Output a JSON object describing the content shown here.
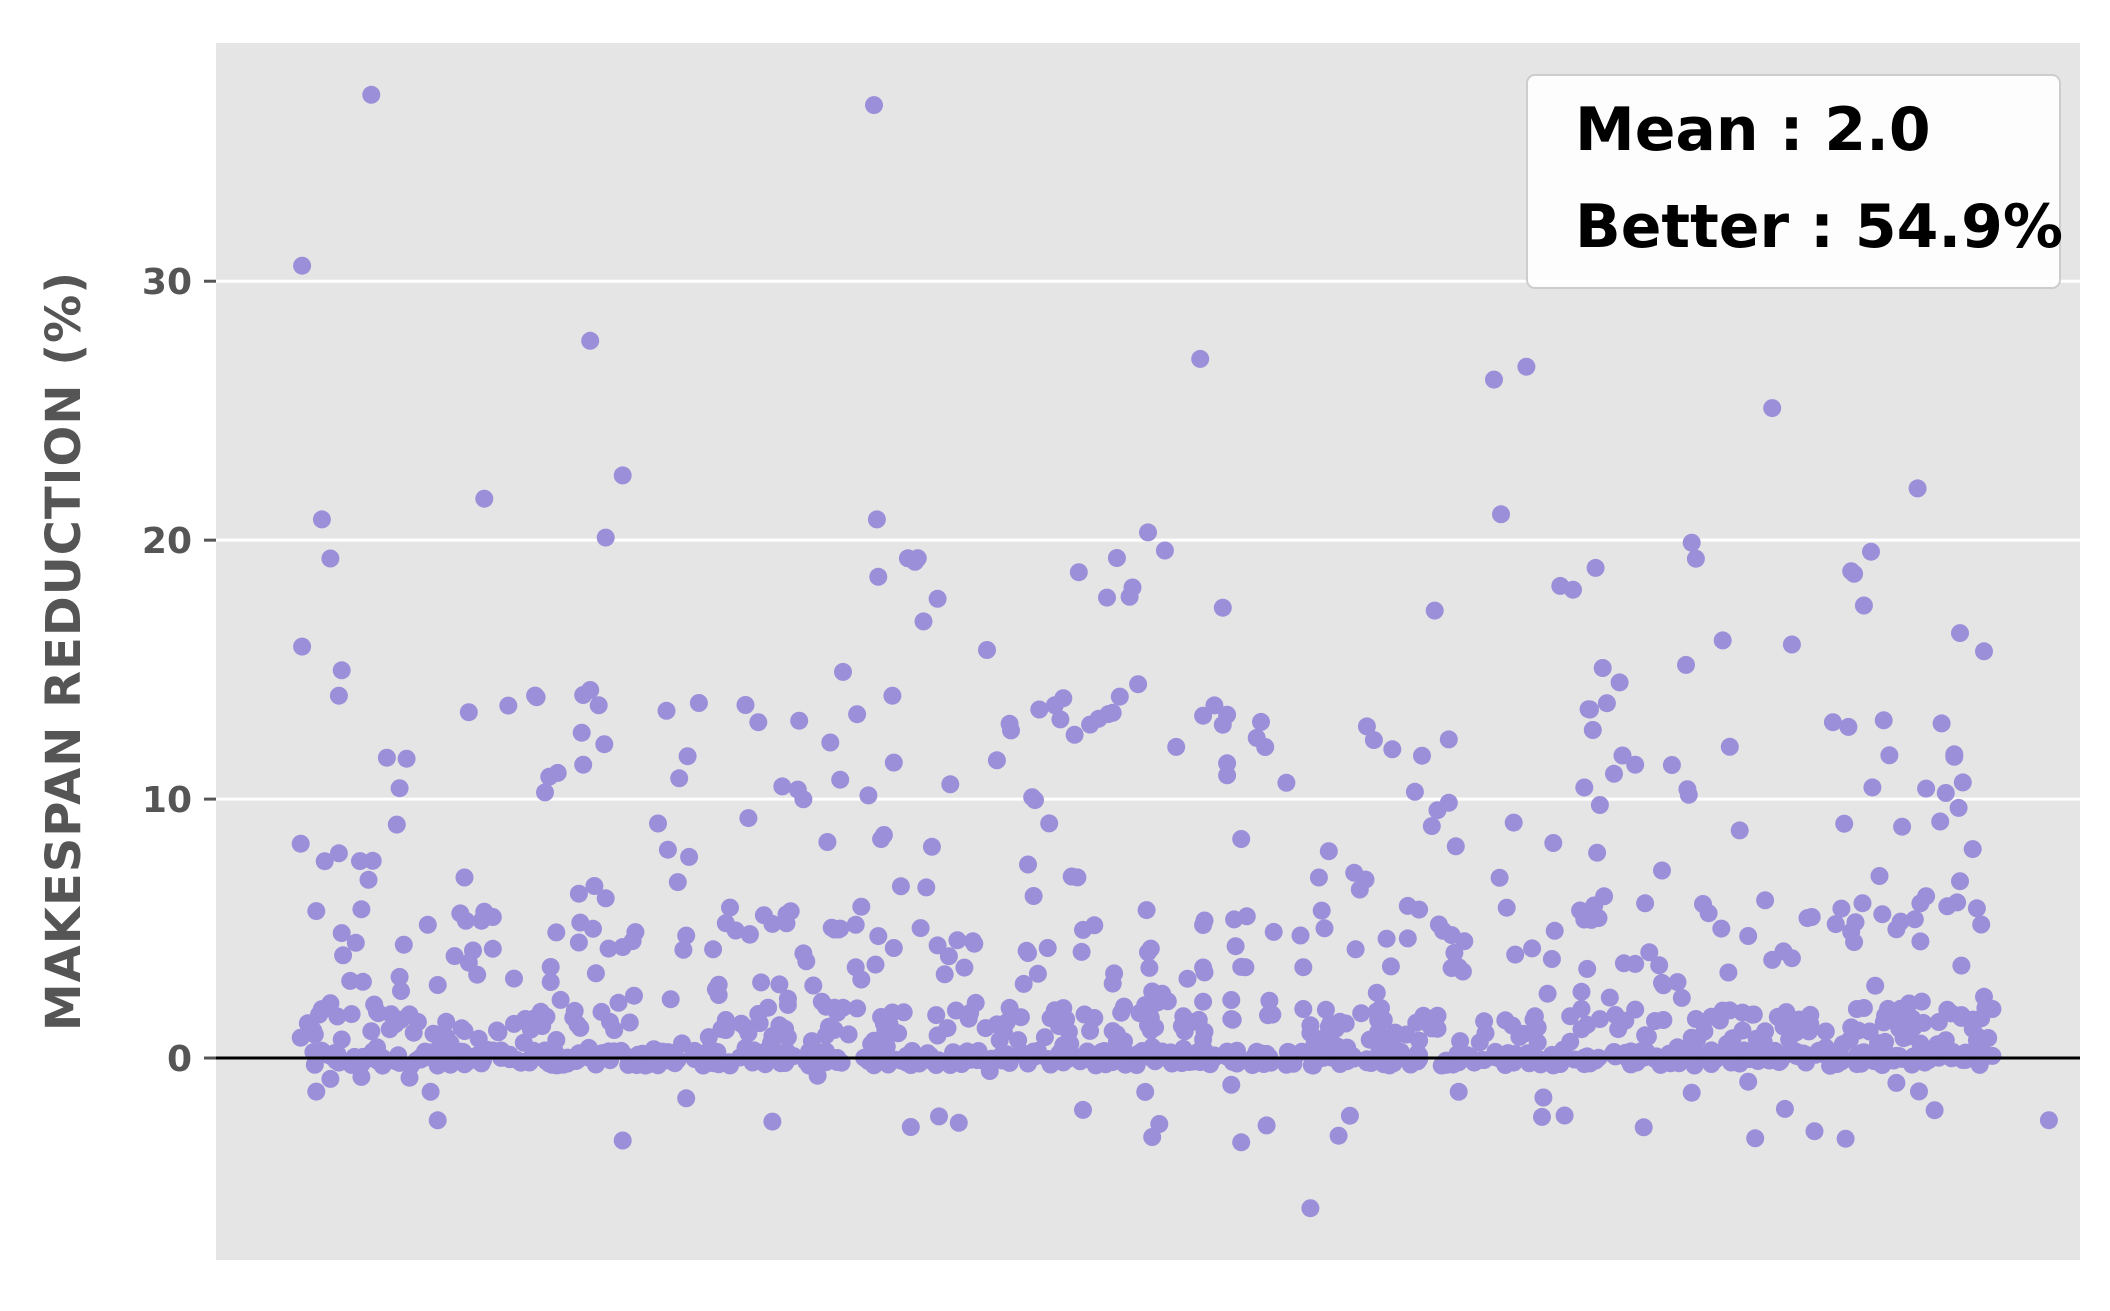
{
  "chart_data": {
    "type": "scatter",
    "title": "",
    "xlabel": "",
    "ylabel": "MAKESPAN REDUCTION (%)",
    "ylim": [
      -7.8,
      39.2
    ],
    "xlim": [
      -60,
      1260
    ],
    "yticks": [
      0,
      10,
      20,
      30
    ],
    "ytick_labels": [
      "0",
      "10",
      "20",
      "30"
    ],
    "grid": true,
    "baseline": 0,
    "legend_position": "top-right",
    "stats": {
      "mean_label": "Mean : 2.0",
      "better_label": "Better : 54.9%"
    },
    "colors": {
      "background": "#e5e5e5",
      "point": "#9b8fd9",
      "grid": "#ffffff",
      "baseline": "#000000"
    },
    "num_points": 1200,
    "series": [
      {
        "values_labeled": [
          {
            "x": 50,
            "y": 37.2
          },
          {
            "x": 406,
            "y": 36.8
          },
          {
            "x": 1,
            "y": 30.6
          },
          {
            "x": 205,
            "y": 27.7
          },
          {
            "x": 637,
            "y": 27.0
          },
          {
            "x": 868,
            "y": 26.7
          },
          {
            "x": 845,
            "y": 26.2
          },
          {
            "x": 1042,
            "y": 25.1
          },
          {
            "x": 228,
            "y": 22.5
          },
          {
            "x": 130,
            "y": 21.6
          },
          {
            "x": 1145,
            "y": 22.0
          },
          {
            "x": 850,
            "y": 21.0
          },
          {
            "x": 15,
            "y": 20.8
          },
          {
            "x": 408,
            "y": 20.8
          },
          {
            "x": 216,
            "y": 20.1
          },
          {
            "x": 600,
            "y": 20.3
          },
          {
            "x": 985,
            "y": 19.9
          },
          {
            "x": 430,
            "y": 19.3
          },
          {
            "x": 612,
            "y": 19.6
          },
          {
            "x": 1098,
            "y": 18.8
          }
        ],
        "generated": "1200 points; values mostly between -1 and 4 with a long positive tail up to 37 and a few negatives down to -5.8"
      }
    ]
  }
}
